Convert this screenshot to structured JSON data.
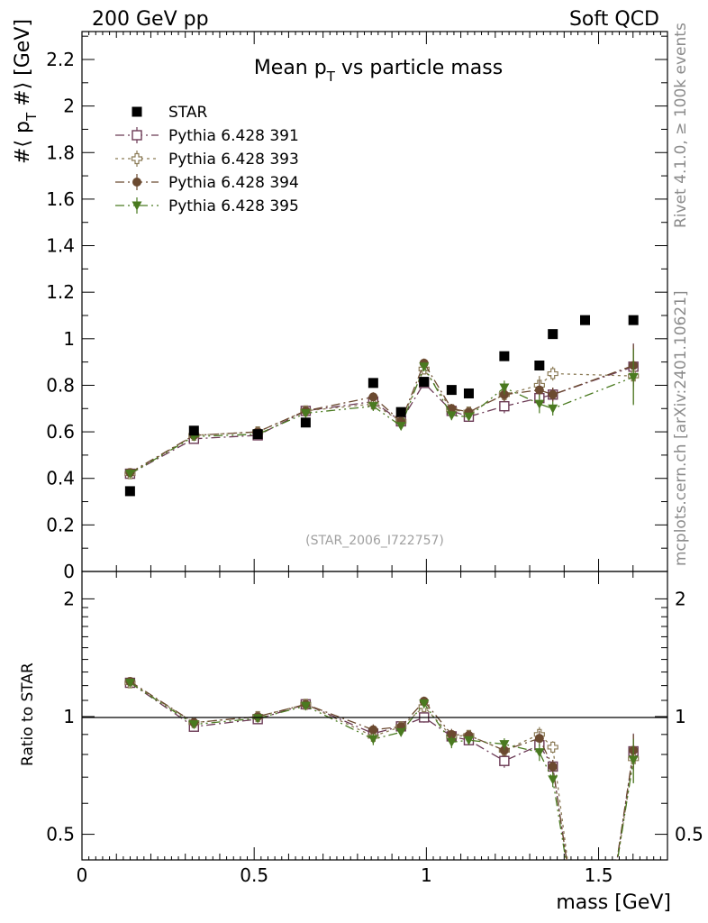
{
  "header": {
    "left": "200 GeV pp",
    "right": "Soft QCD"
  },
  "side_labels": {
    "rivet": "Rivet 4.1.0, ≥ 100k events",
    "mcplots": "mcplots.cern.ch [arXiv:2401.10621]"
  },
  "chart_data": {
    "type": "scatter",
    "title": "Mean p_T vs particle mass",
    "title_main": "Mean p",
    "title_sub": "T",
    "title_rest": " vs particle mass",
    "xlabel": "mass [GeV]",
    "ylabel_main": "#⟨ p",
    "ylabel_sub": "T",
    "ylabel_rest": " #⟩ [GeV]",
    "ratio_ylabel": "Ratio to STAR",
    "watermark": "(STAR_2006_I722757)",
    "xlim": [
      0,
      1.7
    ],
    "ylim": [
      0,
      2.32
    ],
    "ratio_ylim": [
      0.43,
      2.35
    ],
    "ratio_ylog": true,
    "x_ticks": [
      "0",
      "0.5",
      "1",
      "1.5"
    ],
    "x_tick_values": [
      0,
      0.5,
      1,
      1.5
    ],
    "y_ticks": [
      "0",
      "0.2",
      "0.4",
      "0.6",
      "0.8",
      "1",
      "1.2",
      "1.4",
      "1.6",
      "1.8",
      "2",
      "2.2"
    ],
    "y_tick_values": [
      0,
      0.2,
      0.4,
      0.6,
      0.8,
      1,
      1.2,
      1.4,
      1.6,
      1.8,
      2,
      2.2
    ],
    "ratio_ticks": [
      "0.5",
      "1",
      "2"
    ],
    "ratio_tick_values": [
      0.5,
      1,
      2
    ],
    "data": {
      "name": "STAR",
      "x": [
        0.1396,
        0.3251,
        0.5104,
        0.6496,
        0.8457,
        0.9263,
        0.9932,
        1.0732,
        1.1232,
        1.2263,
        1.3282,
        1.3671,
        1.4607,
        1.6011
      ],
      "y": [
        0.345,
        0.605,
        0.59,
        0.64,
        0.81,
        0.685,
        0.815,
        0.78,
        0.765,
        0.925,
        0.885,
        1.02,
        1.08,
        1.08
      ]
    },
    "series": [
      {
        "name": "Pythia 6.428 391",
        "color": "#6b3a55",
        "marker": "open-square",
        "dash": "10,4,2,4",
        "x": [
          0.1396,
          0.3251,
          0.5104,
          0.6496,
          0.8457,
          0.9263,
          0.9932,
          1.0732,
          1.1232,
          1.2263,
          1.3282,
          1.3671,
          1.6011
        ],
        "y": [
          0.42,
          0.57,
          0.585,
          0.69,
          0.73,
          0.645,
          0.81,
          0.69,
          0.665,
          0.71,
          0.745,
          0.76,
          0.88
        ],
        "err": [
          0.01,
          0.01,
          0.01,
          0.01,
          0.02,
          0.01,
          0.02,
          0.02,
          0.01,
          0.03,
          0.04,
          0.03,
          0.1
        ],
        "ratio": [
          1.22,
          0.942,
          0.985,
          1.075,
          0.905,
          0.944,
          0.995,
          0.89,
          0.87,
          0.77,
          0.845,
          0.745,
          0.815
        ],
        "ratio_err": [
          0.02,
          0.02,
          0.02,
          0.02,
          0.03,
          0.02,
          0.03,
          0.03,
          0.02,
          0.03,
          0.04,
          0.03,
          0.09
        ]
      },
      {
        "name": "Pythia 6.428 393",
        "color": "#8a7a55",
        "marker": "open-cross",
        "dash": "3,4",
        "x": [
          0.1396,
          0.3251,
          0.5104,
          0.6496,
          0.8457,
          0.9263,
          0.9932,
          1.0732,
          1.1232,
          1.2263,
          1.3282,
          1.3671,
          1.6011
        ],
        "y": [
          0.42,
          0.585,
          0.6,
          0.69,
          0.72,
          0.645,
          0.87,
          0.695,
          0.685,
          0.76,
          0.8,
          0.85,
          0.84
        ],
        "err": [
          0.01,
          0.01,
          0.01,
          0.01,
          0.02,
          0.01,
          0.02,
          0.02,
          0.01,
          0.03,
          0.04,
          0.03,
          0.12
        ],
        "ratio": [
          1.22,
          0.965,
          1.0,
          1.075,
          0.89,
          0.942,
          1.06,
          0.89,
          0.895,
          0.82,
          0.9,
          0.835,
          0.78
        ],
        "ratio_err": [
          0.02,
          0.02,
          0.02,
          0.02,
          0.03,
          0.02,
          0.03,
          0.03,
          0.02,
          0.03,
          0.04,
          0.03,
          0.1
        ]
      },
      {
        "name": "Pythia 6.428 394",
        "color": "#6b4a30",
        "marker": "filled-circle",
        "dash": "10,4,2,4",
        "x": [
          0.1396,
          0.3251,
          0.5104,
          0.6496,
          0.8457,
          0.9263,
          0.9932,
          1.0732,
          1.1232,
          1.2263,
          1.3282,
          1.3671,
          1.6011
        ],
        "y": [
          0.425,
          0.585,
          0.6,
          0.69,
          0.75,
          0.645,
          0.895,
          0.7,
          0.685,
          0.76,
          0.78,
          0.76,
          0.885
        ],
        "err": [
          0.01,
          0.01,
          0.01,
          0.01,
          0.02,
          0.01,
          0.02,
          0.02,
          0.01,
          0.03,
          0.04,
          0.03,
          0.09
        ],
        "ratio": [
          1.23,
          0.965,
          1.0,
          1.075,
          0.925,
          0.942,
          1.095,
          0.9,
          0.895,
          0.82,
          0.88,
          0.745,
          0.82
        ],
        "ratio_err": [
          0.02,
          0.02,
          0.02,
          0.02,
          0.03,
          0.02,
          0.03,
          0.03,
          0.02,
          0.03,
          0.04,
          0.03,
          0.08
        ]
      },
      {
        "name": "Pythia 6.428 395",
        "color": "#4a7a20",
        "marker": "filled-triangle-down",
        "dash": "10,4,2,4,2,4",
        "x": [
          0.1396,
          0.3251,
          0.5104,
          0.6496,
          0.8457,
          0.9263,
          0.9932,
          1.0732,
          1.1232,
          1.2263,
          1.3282,
          1.3671,
          1.6011
        ],
        "y": [
          0.42,
          0.58,
          0.59,
          0.68,
          0.71,
          0.625,
          0.88,
          0.67,
          0.665,
          0.79,
          0.72,
          0.7,
          0.835
        ],
        "err": [
          0.01,
          0.01,
          0.01,
          0.01,
          0.02,
          0.01,
          0.02,
          0.02,
          0.01,
          0.03,
          0.04,
          0.03,
          0.12
        ],
        "ratio": [
          1.22,
          0.955,
          0.99,
          1.065,
          0.875,
          0.912,
          1.08,
          0.86,
          0.87,
          0.85,
          0.81,
          0.69,
          0.775
        ],
        "ratio_err": [
          0.02,
          0.02,
          0.02,
          0.02,
          0.03,
          0.02,
          0.03,
          0.03,
          0.02,
          0.03,
          0.04,
          0.03,
          0.1
        ]
      }
    ]
  }
}
